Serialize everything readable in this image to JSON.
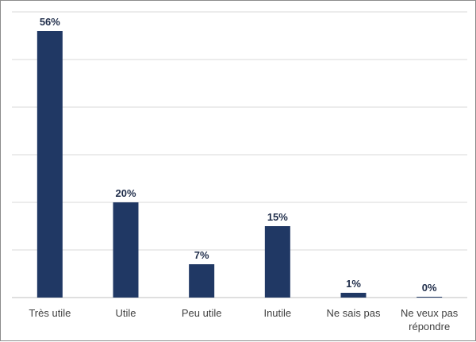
{
  "chart_data": {
    "type": "bar",
    "title": "",
    "xlabel": "",
    "ylabel": "",
    "categories": [
      "Très utile",
      "Utile",
      "Peu utile",
      "Inutile",
      "Ne sais pas",
      "Ne veux pas répondre"
    ],
    "values": [
      56,
      20,
      7,
      15,
      1,
      0
    ],
    "value_labels": [
      "56%",
      "20%",
      "7%",
      "15%",
      "1%",
      "0%"
    ],
    "ylim": [
      0,
      60
    ],
    "grid": true,
    "legend": "none",
    "colors": {
      "bar": "#203864",
      "grid": "#d9d9d9",
      "axis": "#bfbfbf"
    }
  }
}
